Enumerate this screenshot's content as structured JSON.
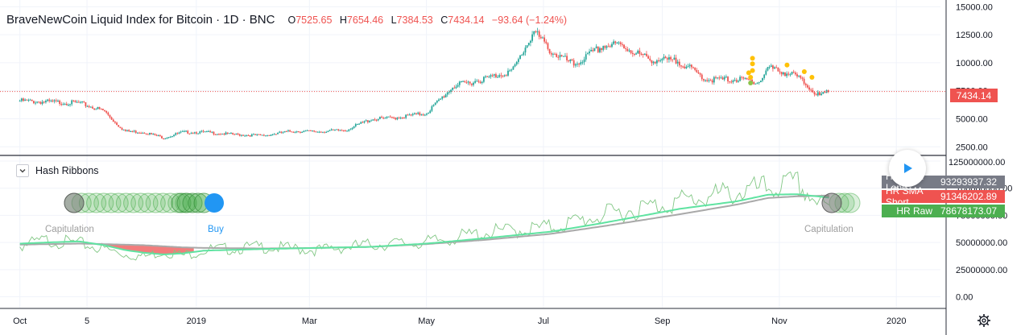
{
  "header": {
    "title": "BraveNewCoin Liquid Index for Bitcoin · 1D · BNC",
    "open": "7525.65",
    "high": "7654.46",
    "low": "7384.53",
    "close": "7434.14",
    "change": "−93.64 (−1.24%)",
    "o_label": "O",
    "h_label": "H",
    "l_label": "L",
    "c_label": "C"
  },
  "last_price_label": "7434.14",
  "indicator": {
    "name": "Hash Ribbons",
    "labels": {
      "capitulation": "Capitulation",
      "buy": "Buy"
    },
    "tags": [
      {
        "name": "HR SMA Long",
        "value": "93293937.32",
        "color": "#787b86"
      },
      {
        "name": "HR SMA Short",
        "value": "91346202.89",
        "color": "#ef5350"
      },
      {
        "name": "HR Raw",
        "value": "78678173.07",
        "color": "#4caf50"
      }
    ]
  },
  "icons": {
    "play": "play-icon",
    "settings": "gear-icon",
    "collapse": "chevron-down-icon"
  },
  "colors": {
    "up": "#26a69a",
    "down": "#ef5350",
    "price_line": "#ef5350",
    "sma_long": "#a9a9a9",
    "sma_short": "#5fe3a1",
    "raw": "#81c784",
    "capitulation_fill": "#f06565",
    "buy_dot": "#2196f3",
    "signal_dot": "#ffc107"
  },
  "x_axis": {
    "ticks": [
      "Oct",
      "5",
      "2019",
      "Mar",
      "May",
      "Jul",
      "Sep",
      "Nov",
      "2020"
    ]
  },
  "price_axis": {
    "ticks": [
      "15000.00",
      "12500.00",
      "10000.00",
      "7500.00",
      "5000.00",
      "2500.00"
    ]
  },
  "hr_axis": {
    "ticks": [
      "125000000.00",
      "100000000.00",
      "75000000.00",
      "50000000.00",
      "25000000.00",
      "0.00"
    ]
  },
  "chart_data": [
    {
      "type": "candlestick",
      "title": "BraveNewCoin Liquid Index for Bitcoin",
      "ylim": [
        1800,
        15600
      ],
      "x": [
        "2018-10-01",
        "2018-10-15",
        "2018-11-01",
        "2018-11-14",
        "2018-11-20",
        "2018-11-25",
        "2018-12-05",
        "2018-12-15",
        "2018-12-25",
        "2019-01-05",
        "2019-01-20",
        "2019-02-05",
        "2019-02-20",
        "2019-03-05",
        "2019-03-20",
        "2019-04-02",
        "2019-04-15",
        "2019-05-01",
        "2019-05-15",
        "2019-06-01",
        "2019-06-15",
        "2019-06-26",
        "2019-07-05",
        "2019-07-17",
        "2019-08-01",
        "2019-08-10",
        "2019-08-25",
        "2019-09-10",
        "2019-09-24",
        "2019-10-10",
        "2019-10-22",
        "2019-10-26",
        "2019-11-10",
        "2019-11-22",
        "2019-11-27"
      ],
      "close": [
        6600,
        6500,
        6400,
        5700,
        4600,
        3900,
        3800,
        3300,
        3800,
        3800,
        3600,
        3500,
        3900,
        3850,
        4000,
        4950,
        5100,
        5500,
        7900,
        8600,
        9300,
        12800,
        11000,
        9800,
        11500,
        11600,
        10300,
        10100,
        8500,
        8500,
        8300,
        9600,
        8800,
        7000,
        7434.14
      ]
    },
    {
      "type": "line",
      "title": "Hash Ribbons",
      "ylim": [
        -10000000,
        128000000
      ],
      "x": [
        "2018-10-01",
        "2018-10-15",
        "2018-11-01",
        "2018-11-14",
        "2018-11-25",
        "2018-12-05",
        "2018-12-15",
        "2018-12-25",
        "2019-01-05",
        "2019-02-05",
        "2019-03-05",
        "2019-04-02",
        "2019-05-01",
        "2019-06-01",
        "2019-07-05",
        "2019-08-01",
        "2019-09-10",
        "2019-10-10",
        "2019-10-26",
        "2019-11-10",
        "2019-11-27"
      ],
      "series": [
        {
          "name": "HR SMA Long",
          "values": [
            48000000,
            48500000,
            49000000,
            48500000,
            48000000,
            47500000,
            46500000,
            45500000,
            45000000,
            44500000,
            45000000,
            46000000,
            48500000,
            52500000,
            58000000,
            65000000,
            76000000,
            85000000,
            91000000,
            92500000,
            93293937.32
          ]
        },
        {
          "name": "HR SMA Short",
          "values": [
            49000000,
            50000000,
            51000000,
            47500000,
            43000000,
            40500000,
            39000000,
            40000000,
            42500000,
            44000000,
            45000000,
            46000000,
            49000000,
            54000000,
            60000000,
            68000000,
            81000000,
            88000000,
            94000000,
            94500000,
            91346202.89
          ]
        },
        {
          "name": "HR Raw",
          "values": [
            47000000,
            52000000,
            49000000,
            44000000,
            39000000,
            37000000,
            42000000,
            38000000,
            43000000,
            46000000,
            43000000,
            48000000,
            50000000,
            59000000,
            64000000,
            75000000,
            88000000,
            96000000,
            100000000,
            104000000,
            78678173.07
          ]
        }
      ]
    }
  ]
}
